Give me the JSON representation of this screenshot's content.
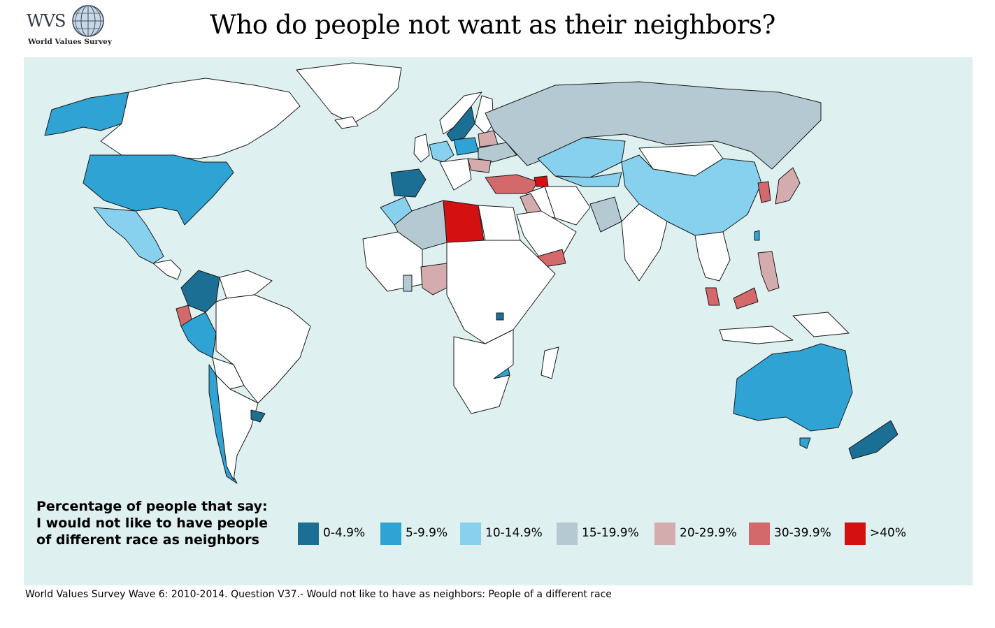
{
  "logo": {
    "text": "WVS",
    "subtitle": "World Values Survey",
    "icon": "globe-icon"
  },
  "title": "Who do people not want as their neighbors?",
  "legend": {
    "title_lines": [
      "Percentage of people that say:",
      "I would not like to have people",
      "of different race as neighbors"
    ],
    "items": [
      {
        "label": "0-4.9%",
        "color": "#1b6e94"
      },
      {
        "label": "5-9.9%",
        "color": "#2ea3d4"
      },
      {
        "label": "10-14.9%",
        "color": "#87d0ee"
      },
      {
        "label": "15-19.9%",
        "color": "#b4c9d2"
      },
      {
        "label": "20-29.9%",
        "color": "#d4acae"
      },
      {
        "label": "30-39.9%",
        "color": "#d3696b"
      },
      {
        "label": ">40%",
        "color": "#d41010"
      }
    ]
  },
  "colors": {
    "ocean": "#dff0f0",
    "no_data": "#ffffff",
    "border": "#1a1a1a"
  },
  "source": "World Values Survey Wave 6: 2010-2014. Question V37.- Would not like to have as neighbors: People of a different race"
}
